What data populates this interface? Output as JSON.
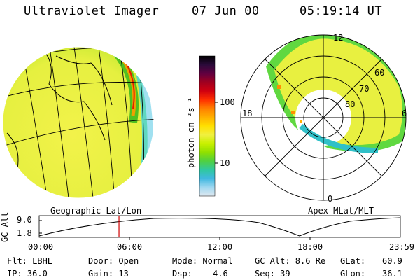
{
  "header": {
    "title": "Ultraviolet Imager",
    "date": "07 Jun 00",
    "time": "05:19:14 UT"
  },
  "colorbar": {
    "unit_label": "photon cm⁻²s⁻¹",
    "ticks": [
      {
        "label": "100",
        "value": 100
      },
      {
        "label": "10",
        "value": 10
      }
    ],
    "colors": [
      "#000000",
      "#2a0a3a",
      "#600040",
      "#a00020",
      "#d00010",
      "#ff3000",
      "#ff8000",
      "#ffb000",
      "#ffe000",
      "#f0f040",
      "#c8f000",
      "#90e000",
      "#50d040",
      "#30c8a0",
      "#40b8e0",
      "#a0d8f0",
      "#e0e8f0"
    ]
  },
  "left_panel": {
    "caption": "Geographic Lat/Lon"
  },
  "right_panel": {
    "caption": "Apex MLat/MLT",
    "mlt_labels": {
      "top": "12",
      "left": "18",
      "right": "6",
      "bottom": "0"
    },
    "lat_labels": [
      "60",
      "70",
      "80"
    ]
  },
  "altitude_plot": {
    "axis_label": "GC Alt",
    "y_ticks": [
      "9.0",
      "1.8"
    ],
    "x_ticks": [
      "00:00",
      "06:00",
      "12:00",
      "18:00",
      "23:59"
    ],
    "current_time_fraction": 0.221
  },
  "info": {
    "flt": "Flt: LBHL",
    "ip": "IP: 36.0",
    "door": "Door: Open",
    "gain": "Gain: 13",
    "mode": "Mode: Normal",
    "dsp_label": "Dsp:",
    "dsp_value": "4.6",
    "gc_alt": "GC Alt: 8.6 Re",
    "seq": "Seq: 39",
    "glat_label": "GLat:",
    "glat_value": "60.9",
    "glon_label": "GLon:",
    "glon_value": "36.1"
  }
}
